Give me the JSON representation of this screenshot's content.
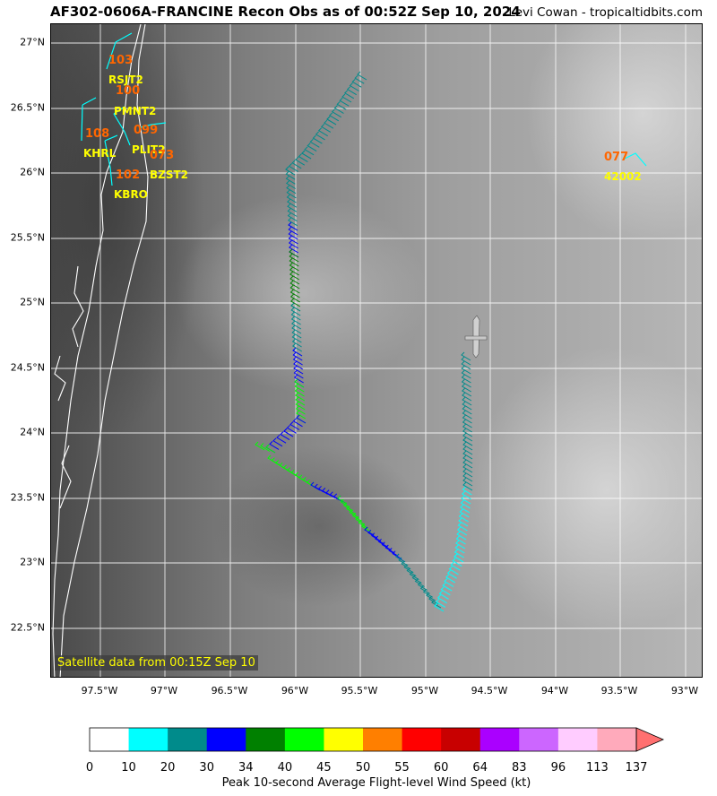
{
  "header": {
    "title": "AF302-0606A-FRANCINE Recon Obs as of 00:52Z Sep 10, 2024",
    "credit": "Levi Cowan - tropicaltidbits.com"
  },
  "map": {
    "lat_labels": [
      "27°N",
      "26.5°N",
      "26°N",
      "25.5°N",
      "25°N",
      "24.5°N",
      "24°N",
      "23.5°N",
      "23°N",
      "22.5°N"
    ],
    "lon_labels": [
      "97.5°W",
      "97°W",
      "96.5°W",
      "96°W",
      "95.5°W",
      "95°W",
      "94.5°W",
      "94°W",
      "93.5°W",
      "93°W"
    ],
    "satellite_note": "Satellite data from 00:15Z Sep 10",
    "stations": [
      {
        "name": "RSJT2",
        "value": "103"
      },
      {
        "name": "PMNT2",
        "value": "100"
      },
      {
        "name": "KHRL",
        "value": "108"
      },
      {
        "name": "PLIT2",
        "value": "099"
      },
      {
        "name": "BZST2",
        "value": "102"
      },
      {
        "name": "KBRO",
        "value": "073"
      },
      {
        "name": "42002",
        "value": "077"
      }
    ],
    "colors": {
      "station_name": "#ffff00",
      "station_value": "#ff6600",
      "coast": "#ffffff",
      "grid": "#ffffff"
    }
  },
  "colorbar": {
    "label": "Peak 10-second Average Flight-level Wind Speed (kt)",
    "ticks": [
      "0",
      "10",
      "20",
      "30",
      "34",
      "40",
      "45",
      "50",
      "55",
      "60",
      "64",
      "83",
      "96",
      "113",
      "137"
    ],
    "colors": [
      "#ffffff",
      "#00ffff",
      "#008b8b",
      "#0000ff",
      "#008000",
      "#00ff00",
      "#ffff00",
      "#ff7f00",
      "#ff0000",
      "#c80000",
      "#aa00ff",
      "#cc66ff",
      "#ffccff",
      "#ffaabb"
    ],
    "extend_color": "#ff7070"
  }
}
